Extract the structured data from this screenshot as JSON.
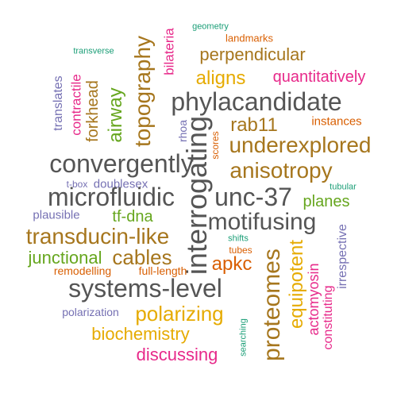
{
  "colors": {
    "teal": "#1b9e77",
    "orange": "#d95f02",
    "purple": "#7570b3",
    "magenta": "#e7298a",
    "green": "#66a61e",
    "gold": "#e6ab02",
    "brown": "#a6761d",
    "gray": "#555555"
  },
  "words": [
    {
      "text": "geometry",
      "color": "#1b9e77",
      "size": 11
    },
    {
      "text": "landmarks",
      "color": "#d95f02",
      "size": 13
    },
    {
      "text": "transverse",
      "color": "#1b9e77",
      "size": 11
    },
    {
      "text": "bilateria",
      "color": "#e7298a",
      "size": 17
    },
    {
      "text": "perpendicular",
      "color": "#a6761d",
      "size": 22
    },
    {
      "text": "topography",
      "color": "#a6761d",
      "size": 28
    },
    {
      "text": "quantitatively",
      "color": "#e7298a",
      "size": 20
    },
    {
      "text": "translates",
      "color": "#7570b3",
      "size": 16
    },
    {
      "text": "contractile",
      "color": "#e7298a",
      "size": 17
    },
    {
      "text": "forkhead",
      "color": "#a6761d",
      "size": 20
    },
    {
      "text": "airway",
      "color": "#66a61e",
      "size": 24
    },
    {
      "text": "aligns",
      "color": "#e6ab02",
      "size": 24
    },
    {
      "text": "phylacandidate",
      "color": "#555555",
      "size": 32
    },
    {
      "text": "instances",
      "color": "#d95f02",
      "size": 15
    },
    {
      "text": "rhoa",
      "color": "#7570b3",
      "size": 14
    },
    {
      "text": "scores",
      "color": "#d95f02",
      "size": 12
    },
    {
      "text": "rab11",
      "color": "#a6761d",
      "size": 24
    },
    {
      "text": "underexplored",
      "color": "#a6761d",
      "size": 28
    },
    {
      "text": "convergently",
      "color": "#555555",
      "size": 32
    },
    {
      "text": "interrogating",
      "color": "#555555",
      "size": 36
    },
    {
      "text": "anisotropy",
      "color": "#a6761d",
      "size": 28
    },
    {
      "text": "t-box",
      "color": "#7570b3",
      "size": 12
    },
    {
      "text": "doublesex",
      "color": "#7570b3",
      "size": 15
    },
    {
      "text": "tubular",
      "color": "#1b9e77",
      "size": 11
    },
    {
      "text": "microfluidic",
      "color": "#555555",
      "size": 32
    },
    {
      "text": "unc-37",
      "color": "#555555",
      "size": 32
    },
    {
      "text": "planes",
      "color": "#66a61e",
      "size": 20
    },
    {
      "text": "plausible",
      "color": "#7570b3",
      "size": 15
    },
    {
      "text": "tf-dna",
      "color": "#66a61e",
      "size": 20
    },
    {
      "text": "motifusing",
      "color": "#555555",
      "size": 30
    },
    {
      "text": "transducin-like",
      "color": "#a6761d",
      "size": 28
    },
    {
      "text": "shifts",
      "color": "#1b9e77",
      "size": 11
    },
    {
      "text": "irrespective",
      "color": "#7570b3",
      "size": 16
    },
    {
      "text": "junctional",
      "color": "#66a61e",
      "size": 22
    },
    {
      "text": "cables",
      "color": "#a6761d",
      "size": 26
    },
    {
      "text": "tubes",
      "color": "#d95f02",
      "size": 12
    },
    {
      "text": "proteomes",
      "color": "#a6761d",
      "size": 30
    },
    {
      "text": "apkc",
      "color": "#d95f02",
      "size": 24
    },
    {
      "text": "equipotent",
      "color": "#e6ab02",
      "size": 24
    },
    {
      "text": "remodelling",
      "color": "#d95f02",
      "size": 14
    },
    {
      "text": "full-length",
      "color": "#d95f02",
      "size": 14
    },
    {
      "text": "systems-level",
      "color": "#555555",
      "size": 32
    },
    {
      "text": "actomyosin",
      "color": "#e7298a",
      "size": 18
    },
    {
      "text": "constituting",
      "color": "#e7298a",
      "size": 16
    },
    {
      "text": "polarization",
      "color": "#7570b3",
      "size": 14
    },
    {
      "text": "polarizing",
      "color": "#e6ab02",
      "size": 26
    },
    {
      "text": "biochemistry",
      "color": "#e6ab02",
      "size": 22
    },
    {
      "text": "searching",
      "color": "#1b9e77",
      "size": 11
    },
    {
      "text": "discussing",
      "color": "#e7298a",
      "size": 22
    }
  ]
}
